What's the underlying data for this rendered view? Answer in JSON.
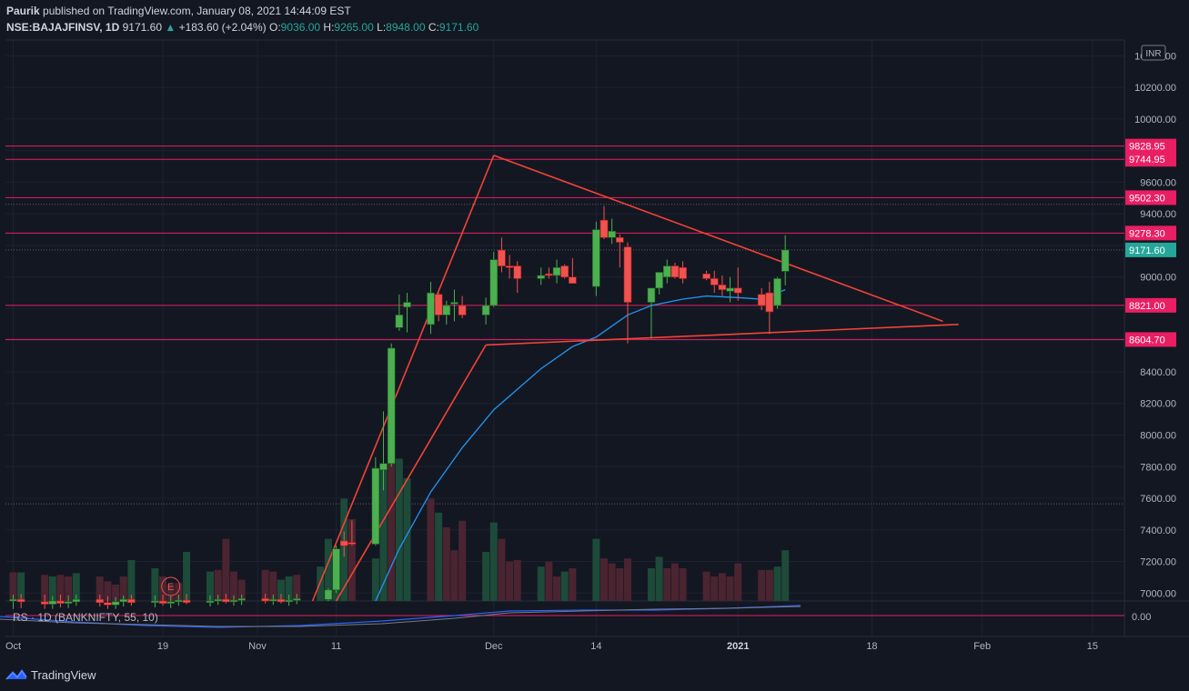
{
  "header": {
    "author": "Paurik",
    "published_text": "published on TradingView.com, January 08, 2021 14:44:09 EST",
    "symbol": "NSE:BAJAJFINSV, 1D",
    "last": "9171.60",
    "change": "+183.60 (+2.04%)",
    "o_label": "O:",
    "o_val": "9036.00",
    "h_label": "H:",
    "h_val": "9265.00",
    "l_label": "L:",
    "l_val": "8948.00",
    "c_label": "C:",
    "c_val": "9171.60"
  },
  "currency_badge": "INR",
  "footer": {
    "brand": "TradingView"
  },
  "chart_data": {
    "type": "candlestick",
    "currency": "INR",
    "y_range": [
      6950,
      10500
    ],
    "x_range_days": [
      -1,
      120
    ],
    "x_ticks": [
      {
        "day": 0,
        "label": "Oct"
      },
      {
        "day": 19,
        "label": "19"
      },
      {
        "day": 31,
        "label": "Nov"
      },
      {
        "day": 41,
        "label": "11"
      },
      {
        "day": 61,
        "label": "Dec"
      },
      {
        "day": 74,
        "label": "14"
      },
      {
        "day": 92,
        "label": "2021"
      },
      {
        "day": 109,
        "label": "18"
      },
      {
        "day": 123,
        "label": "Feb"
      },
      {
        "day": 137,
        "label": "15"
      }
    ],
    "y_ticks": [
      10400,
      10200,
      10000,
      9800,
      9600,
      9400,
      9200,
      9000,
      8800,
      8600,
      8400,
      8200,
      8000,
      7800,
      7600,
      7400,
      7200,
      7000
    ],
    "y_tick_labels": [
      "10400.00",
      "10200.00",
      "10000.00",
      "9800.00",
      "9600.00",
      "9400.00",
      "9200.00",
      "9000.00",
      "8800.00",
      "8600.00",
      "8400.00",
      "8200.00",
      "8000.00",
      "7800.00",
      "7600.00",
      "7400.00",
      "7200.00",
      "7000.00"
    ],
    "horizontal_levels": [
      9828.95,
      9744.95,
      9502.3,
      9278.3,
      8821.0,
      8604.7
    ],
    "horizontal_level_labels": [
      "9828.95",
      "9744.95",
      "9502.30",
      "9278.30",
      "8821.00",
      "8604.70"
    ],
    "dotted_levels": [
      9460,
      9171.6,
      7565
    ],
    "last_price": 9171.6,
    "last_price_label": "9171.60",
    "candles": [
      {
        "d": 0,
        "o": 6950,
        "h": 6990,
        "l": 6900,
        "c": 6960
      },
      {
        "d": 1,
        "o": 6960,
        "h": 6995,
        "l": 6905,
        "c": 6945
      },
      {
        "d": 4,
        "o": 6945,
        "h": 6990,
        "l": 6900,
        "c": 6930
      },
      {
        "d": 5,
        "o": 6930,
        "h": 6980,
        "l": 6900,
        "c": 6950
      },
      {
        "d": 6,
        "o": 6950,
        "h": 6990,
        "l": 6910,
        "c": 6935
      },
      {
        "d": 7,
        "o": 6935,
        "h": 6985,
        "l": 6905,
        "c": 6945
      },
      {
        "d": 8,
        "o": 6945,
        "h": 6990,
        "l": 6920,
        "c": 6960
      },
      {
        "d": 11,
        "o": 6960,
        "h": 6990,
        "l": 6915,
        "c": 6940
      },
      {
        "d": 12,
        "o": 6940,
        "h": 6980,
        "l": 6900,
        "c": 6925
      },
      {
        "d": 13,
        "o": 6925,
        "h": 6975,
        "l": 6900,
        "c": 6945
      },
      {
        "d": 14,
        "o": 6945,
        "h": 6985,
        "l": 6915,
        "c": 6960
      },
      {
        "d": 15,
        "o": 6960,
        "h": 6990,
        "l": 6920,
        "c": 6940
      },
      {
        "d": 18,
        "o": 6940,
        "h": 6985,
        "l": 6910,
        "c": 6950
      },
      {
        "d": 19,
        "o": 6950,
        "h": 6990,
        "l": 6920,
        "c": 6935
      },
      {
        "d": 20,
        "o": 6935,
        "h": 6980,
        "l": 6905,
        "c": 6945
      },
      {
        "d": 21,
        "o": 6945,
        "h": 6990,
        "l": 6920,
        "c": 6955
      },
      {
        "d": 22,
        "o": 6955,
        "h": 6995,
        "l": 6930,
        "c": 6940
      },
      {
        "d": 25,
        "o": 6940,
        "h": 6985,
        "l": 6915,
        "c": 6950
      },
      {
        "d": 26,
        "o": 6950,
        "h": 6990,
        "l": 6925,
        "c": 6960
      },
      {
        "d": 27,
        "o": 6960,
        "h": 6995,
        "l": 6935,
        "c": 6945
      },
      {
        "d": 28,
        "o": 6945,
        "h": 6985,
        "l": 6920,
        "c": 6955
      },
      {
        "d": 29,
        "o": 6955,
        "h": 6990,
        "l": 6925,
        "c": 6965
      },
      {
        "d": 32,
        "o": 6965,
        "h": 6995,
        "l": 6935,
        "c": 6950
      },
      {
        "d": 33,
        "o": 6950,
        "h": 6990,
        "l": 6925,
        "c": 6960
      },
      {
        "d": 34,
        "o": 6960,
        "h": 6995,
        "l": 6935,
        "c": 6945
      },
      {
        "d": 35,
        "o": 6945,
        "h": 6990,
        "l": 6920,
        "c": 6955
      },
      {
        "d": 36,
        "o": 6955,
        "h": 6995,
        "l": 6930,
        "c": 6965
      },
      {
        "d": 40,
        "o": 6960,
        "h": 7030,
        "l": 6950,
        "c": 7020
      },
      {
        "d": 41,
        "o": 7020,
        "h": 7300,
        "l": 7000,
        "c": 7280
      },
      {
        "d": 42,
        "o": 7330,
        "h": 7390,
        "l": 7230,
        "c": 7300
      },
      {
        "d": 43,
        "o": 7320,
        "h": 7460,
        "l": 7300,
        "c": 7310
      },
      {
        "d": 46,
        "o": 7310,
        "h": 7860,
        "l": 7300,
        "c": 7790
      },
      {
        "d": 47,
        "o": 7780,
        "h": 8150,
        "l": 7650,
        "c": 7820
      },
      {
        "d": 48,
        "o": 7820,
        "h": 8580,
        "l": 7800,
        "c": 8550
      },
      {
        "d": 49,
        "o": 8680,
        "h": 8890,
        "l": 8660,
        "c": 8760
      },
      {
        "d": 50,
        "o": 8810,
        "h": 8900,
        "l": 8650,
        "c": 8840
      },
      {
        "d": 53,
        "o": 8700,
        "h": 8970,
        "l": 8640,
        "c": 8900
      },
      {
        "d": 54,
        "o": 8890,
        "h": 8900,
        "l": 8720,
        "c": 8760
      },
      {
        "d": 55,
        "o": 8760,
        "h": 8850,
        "l": 8700,
        "c": 8820
      },
      {
        "d": 56,
        "o": 8830,
        "h": 8920,
        "l": 8720,
        "c": 8840
      },
      {
        "d": 57,
        "o": 8820,
        "h": 8880,
        "l": 8740,
        "c": 8760
      },
      {
        "d": 60,
        "o": 8760,
        "h": 8870,
        "l": 8700,
        "c": 8820
      },
      {
        "d": 61,
        "o": 8820,
        "h": 9160,
        "l": 8810,
        "c": 9110
      },
      {
        "d": 62,
        "o": 9170,
        "h": 9250,
        "l": 9030,
        "c": 9070
      },
      {
        "d": 63,
        "o": 9070,
        "h": 9140,
        "l": 8990,
        "c": 9060
      },
      {
        "d": 64,
        "o": 9070,
        "h": 9100,
        "l": 8900,
        "c": 8990
      },
      {
        "d": 67,
        "o": 8990,
        "h": 9060,
        "l": 8950,
        "c": 9010
      },
      {
        "d": 68,
        "o": 9020,
        "h": 9060,
        "l": 8990,
        "c": 9010
      },
      {
        "d": 69,
        "o": 9010,
        "h": 9110,
        "l": 8960,
        "c": 9060
      },
      {
        "d": 70,
        "o": 9070,
        "h": 9080,
        "l": 8990,
        "c": 9000
      },
      {
        "d": 71,
        "o": 9000,
        "h": 9120,
        "l": 8960,
        "c": 8960
      },
      {
        "d": 74,
        "o": 8940,
        "h": 9350,
        "l": 8880,
        "c": 9300
      },
      {
        "d": 75,
        "o": 9360,
        "h": 9450,
        "l": 9240,
        "c": 9250
      },
      {
        "d": 76,
        "o": 9250,
        "h": 9370,
        "l": 9210,
        "c": 9290
      },
      {
        "d": 77,
        "o": 9250,
        "h": 9270,
        "l": 9060,
        "c": 9220
      },
      {
        "d": 78,
        "o": 9190,
        "h": 9220,
        "l": 8580,
        "c": 8840
      },
      {
        "d": 81,
        "o": 8840,
        "h": 8920,
        "l": 8610,
        "c": 8930
      },
      {
        "d": 82,
        "o": 8930,
        "h": 9020,
        "l": 8890,
        "c": 9030
      },
      {
        "d": 83,
        "o": 9000,
        "h": 9110,
        "l": 8960,
        "c": 9070
      },
      {
        "d": 84,
        "o": 9070,
        "h": 9090,
        "l": 8990,
        "c": 9000
      },
      {
        "d": 85,
        "o": 9060,
        "h": 9100,
        "l": 8960,
        "c": 8990
      },
      {
        "d": 88,
        "o": 9020,
        "h": 9040,
        "l": 8980,
        "c": 8990
      },
      {
        "d": 89,
        "o": 8990,
        "h": 9040,
        "l": 8900,
        "c": 8950
      },
      {
        "d": 90,
        "o": 8950,
        "h": 9010,
        "l": 8880,
        "c": 8920
      },
      {
        "d": 91,
        "o": 8910,
        "h": 9000,
        "l": 8840,
        "c": 8930
      },
      {
        "d": 92,
        "o": 8930,
        "h": 9060,
        "l": 8850,
        "c": 8900
      },
      {
        "d": 95,
        "o": 8890,
        "h": 8930,
        "l": 8790,
        "c": 8820
      },
      {
        "d": 96,
        "o": 8900,
        "h": 8970,
        "l": 8640,
        "c": 8780
      },
      {
        "d": 97,
        "o": 8820,
        "h": 9000,
        "l": 8800,
        "c": 8990
      },
      {
        "d": 98,
        "o": 9036,
        "h": 9265,
        "l": 8948,
        "c": 9171.6
      }
    ],
    "volume": [
      {
        "d": 0,
        "v": 0.35,
        "up": false
      },
      {
        "d": 1,
        "v": 0.35,
        "up": true
      },
      {
        "d": 4,
        "v": 0.32,
        "up": false
      },
      {
        "d": 5,
        "v": 0.3,
        "up": true
      },
      {
        "d": 6,
        "v": 0.32,
        "up": false
      },
      {
        "d": 7,
        "v": 0.3,
        "up": false
      },
      {
        "d": 8,
        "v": 0.34,
        "up": true
      },
      {
        "d": 11,
        "v": 0.3,
        "up": false
      },
      {
        "d": 12,
        "v": 0.24,
        "up": false
      },
      {
        "d": 13,
        "v": 0.2,
        "up": false
      },
      {
        "d": 14,
        "v": 0.3,
        "up": false
      },
      {
        "d": 15,
        "v": 0.5,
        "up": true
      },
      {
        "d": 18,
        "v": 0.4,
        "up": true
      },
      {
        "d": 19,
        "v": 0.3,
        "up": false
      },
      {
        "d": 20,
        "v": 0.2,
        "up": false
      },
      {
        "d": 21,
        "v": 0.22,
        "up": false
      },
      {
        "d": 22,
        "v": 0.6,
        "up": true
      },
      {
        "d": 25,
        "v": 0.36,
        "up": true
      },
      {
        "d": 26,
        "v": 0.38,
        "up": false
      },
      {
        "d": 27,
        "v": 0.76,
        "up": false
      },
      {
        "d": 28,
        "v": 0.36,
        "up": false
      },
      {
        "d": 29,
        "v": 0.26,
        "up": false
      },
      {
        "d": 32,
        "v": 0.38,
        "up": false
      },
      {
        "d": 33,
        "v": 0.36,
        "up": false
      },
      {
        "d": 34,
        "v": 0.26,
        "up": true
      },
      {
        "d": 35,
        "v": 0.3,
        "up": true
      },
      {
        "d": 36,
        "v": 0.32,
        "up": false
      },
      {
        "d": 39,
        "v": 0.42,
        "up": true
      },
      {
        "d": 40,
        "v": 0.76,
        "up": true
      },
      {
        "d": 41,
        "v": 0.55,
        "up": true
      },
      {
        "d": 42,
        "v": 1.25,
        "up": true
      },
      {
        "d": 43,
        "v": 1.0,
        "up": false
      },
      {
        "d": 46,
        "v": 0.52,
        "up": true
      },
      {
        "d": 47,
        "v": 1.6,
        "up": true
      },
      {
        "d": 48,
        "v": 1.84,
        "up": false
      },
      {
        "d": 49,
        "v": 1.74,
        "up": true
      },
      {
        "d": 50,
        "v": 1.5,
        "up": true
      },
      {
        "d": 53,
        "v": 1.25,
        "up": false
      },
      {
        "d": 54,
        "v": 1.08,
        "up": true
      },
      {
        "d": 55,
        "v": 0.9,
        "up": false
      },
      {
        "d": 56,
        "v": 0.62,
        "up": false
      },
      {
        "d": 57,
        "v": 0.98,
        "up": false
      },
      {
        "d": 60,
        "v": 0.6,
        "up": true
      },
      {
        "d": 61,
        "v": 0.96,
        "up": true
      },
      {
        "d": 62,
        "v": 0.76,
        "up": false
      },
      {
        "d": 63,
        "v": 0.48,
        "up": false
      },
      {
        "d": 64,
        "v": 0.5,
        "up": false
      },
      {
        "d": 67,
        "v": 0.42,
        "up": true
      },
      {
        "d": 68,
        "v": 0.48,
        "up": false
      },
      {
        "d": 69,
        "v": 0.3,
        "up": false
      },
      {
        "d": 70,
        "v": 0.36,
        "up": true
      },
      {
        "d": 71,
        "v": 0.4,
        "up": false
      },
      {
        "d": 74,
        "v": 0.76,
        "up": true
      },
      {
        "d": 75,
        "v": 0.52,
        "up": false
      },
      {
        "d": 76,
        "v": 0.46,
        "up": false
      },
      {
        "d": 77,
        "v": 0.4,
        "up": false
      },
      {
        "d": 78,
        "v": 0.52,
        "up": false
      },
      {
        "d": 81,
        "v": 0.4,
        "up": true
      },
      {
        "d": 82,
        "v": 0.54,
        "up": true
      },
      {
        "d": 83,
        "v": 0.4,
        "up": false
      },
      {
        "d": 84,
        "v": 0.46,
        "up": false
      },
      {
        "d": 85,
        "v": 0.4,
        "up": false
      },
      {
        "d": 88,
        "v": 0.36,
        "up": false
      },
      {
        "d": 89,
        "v": 0.3,
        "up": false
      },
      {
        "d": 90,
        "v": 0.34,
        "up": false
      },
      {
        "d": 91,
        "v": 0.3,
        "up": false
      },
      {
        "d": 92,
        "v": 0.46,
        "up": false
      },
      {
        "d": 95,
        "v": 0.38,
        "up": false
      },
      {
        "d": 96,
        "v": 0.38,
        "up": false
      },
      {
        "d": 97,
        "v": 0.42,
        "up": true
      },
      {
        "d": 98,
        "v": 0.62,
        "up": true
      }
    ],
    "moving_average": [
      {
        "d": 46,
        "v": 6950
      },
      {
        "d": 49,
        "v": 7280
      },
      {
        "d": 53,
        "v": 7640
      },
      {
        "d": 57,
        "v": 7920
      },
      {
        "d": 61,
        "v": 8160
      },
      {
        "d": 64,
        "v": 8290
      },
      {
        "d": 67,
        "v": 8420
      },
      {
        "d": 71,
        "v": 8560
      },
      {
        "d": 74,
        "v": 8620
      },
      {
        "d": 78,
        "v": 8760
      },
      {
        "d": 81,
        "v": 8820
      },
      {
        "d": 85,
        "v": 8860
      },
      {
        "d": 88,
        "v": 8880
      },
      {
        "d": 92,
        "v": 8870
      },
      {
        "d": 95,
        "v": 8860
      },
      {
        "d": 98,
        "v": 8920
      }
    ],
    "trendlines": [
      {
        "from": {
          "d": 38,
          "p": 6950
        },
        "to": {
          "d": 61,
          "p": 9770
        }
      },
      {
        "from": {
          "d": 61,
          "p": 9770
        },
        "to": {
          "d": 118,
          "p": 8720
        }
      },
      {
        "from": {
          "d": 41,
          "p": 6950
        },
        "to": {
          "d": 60,
          "p": 8570
        }
      },
      {
        "from": {
          "d": 60,
          "p": 8570
        },
        "to": {
          "d": 120,
          "p": 8700
        }
      }
    ],
    "earnings_marker": {
      "d": 20,
      "label": "E"
    },
    "indicator": {
      "label": "RS · 1D (BANKNIFTY, 55, 10)",
      "value_label": "0.00"
    }
  }
}
